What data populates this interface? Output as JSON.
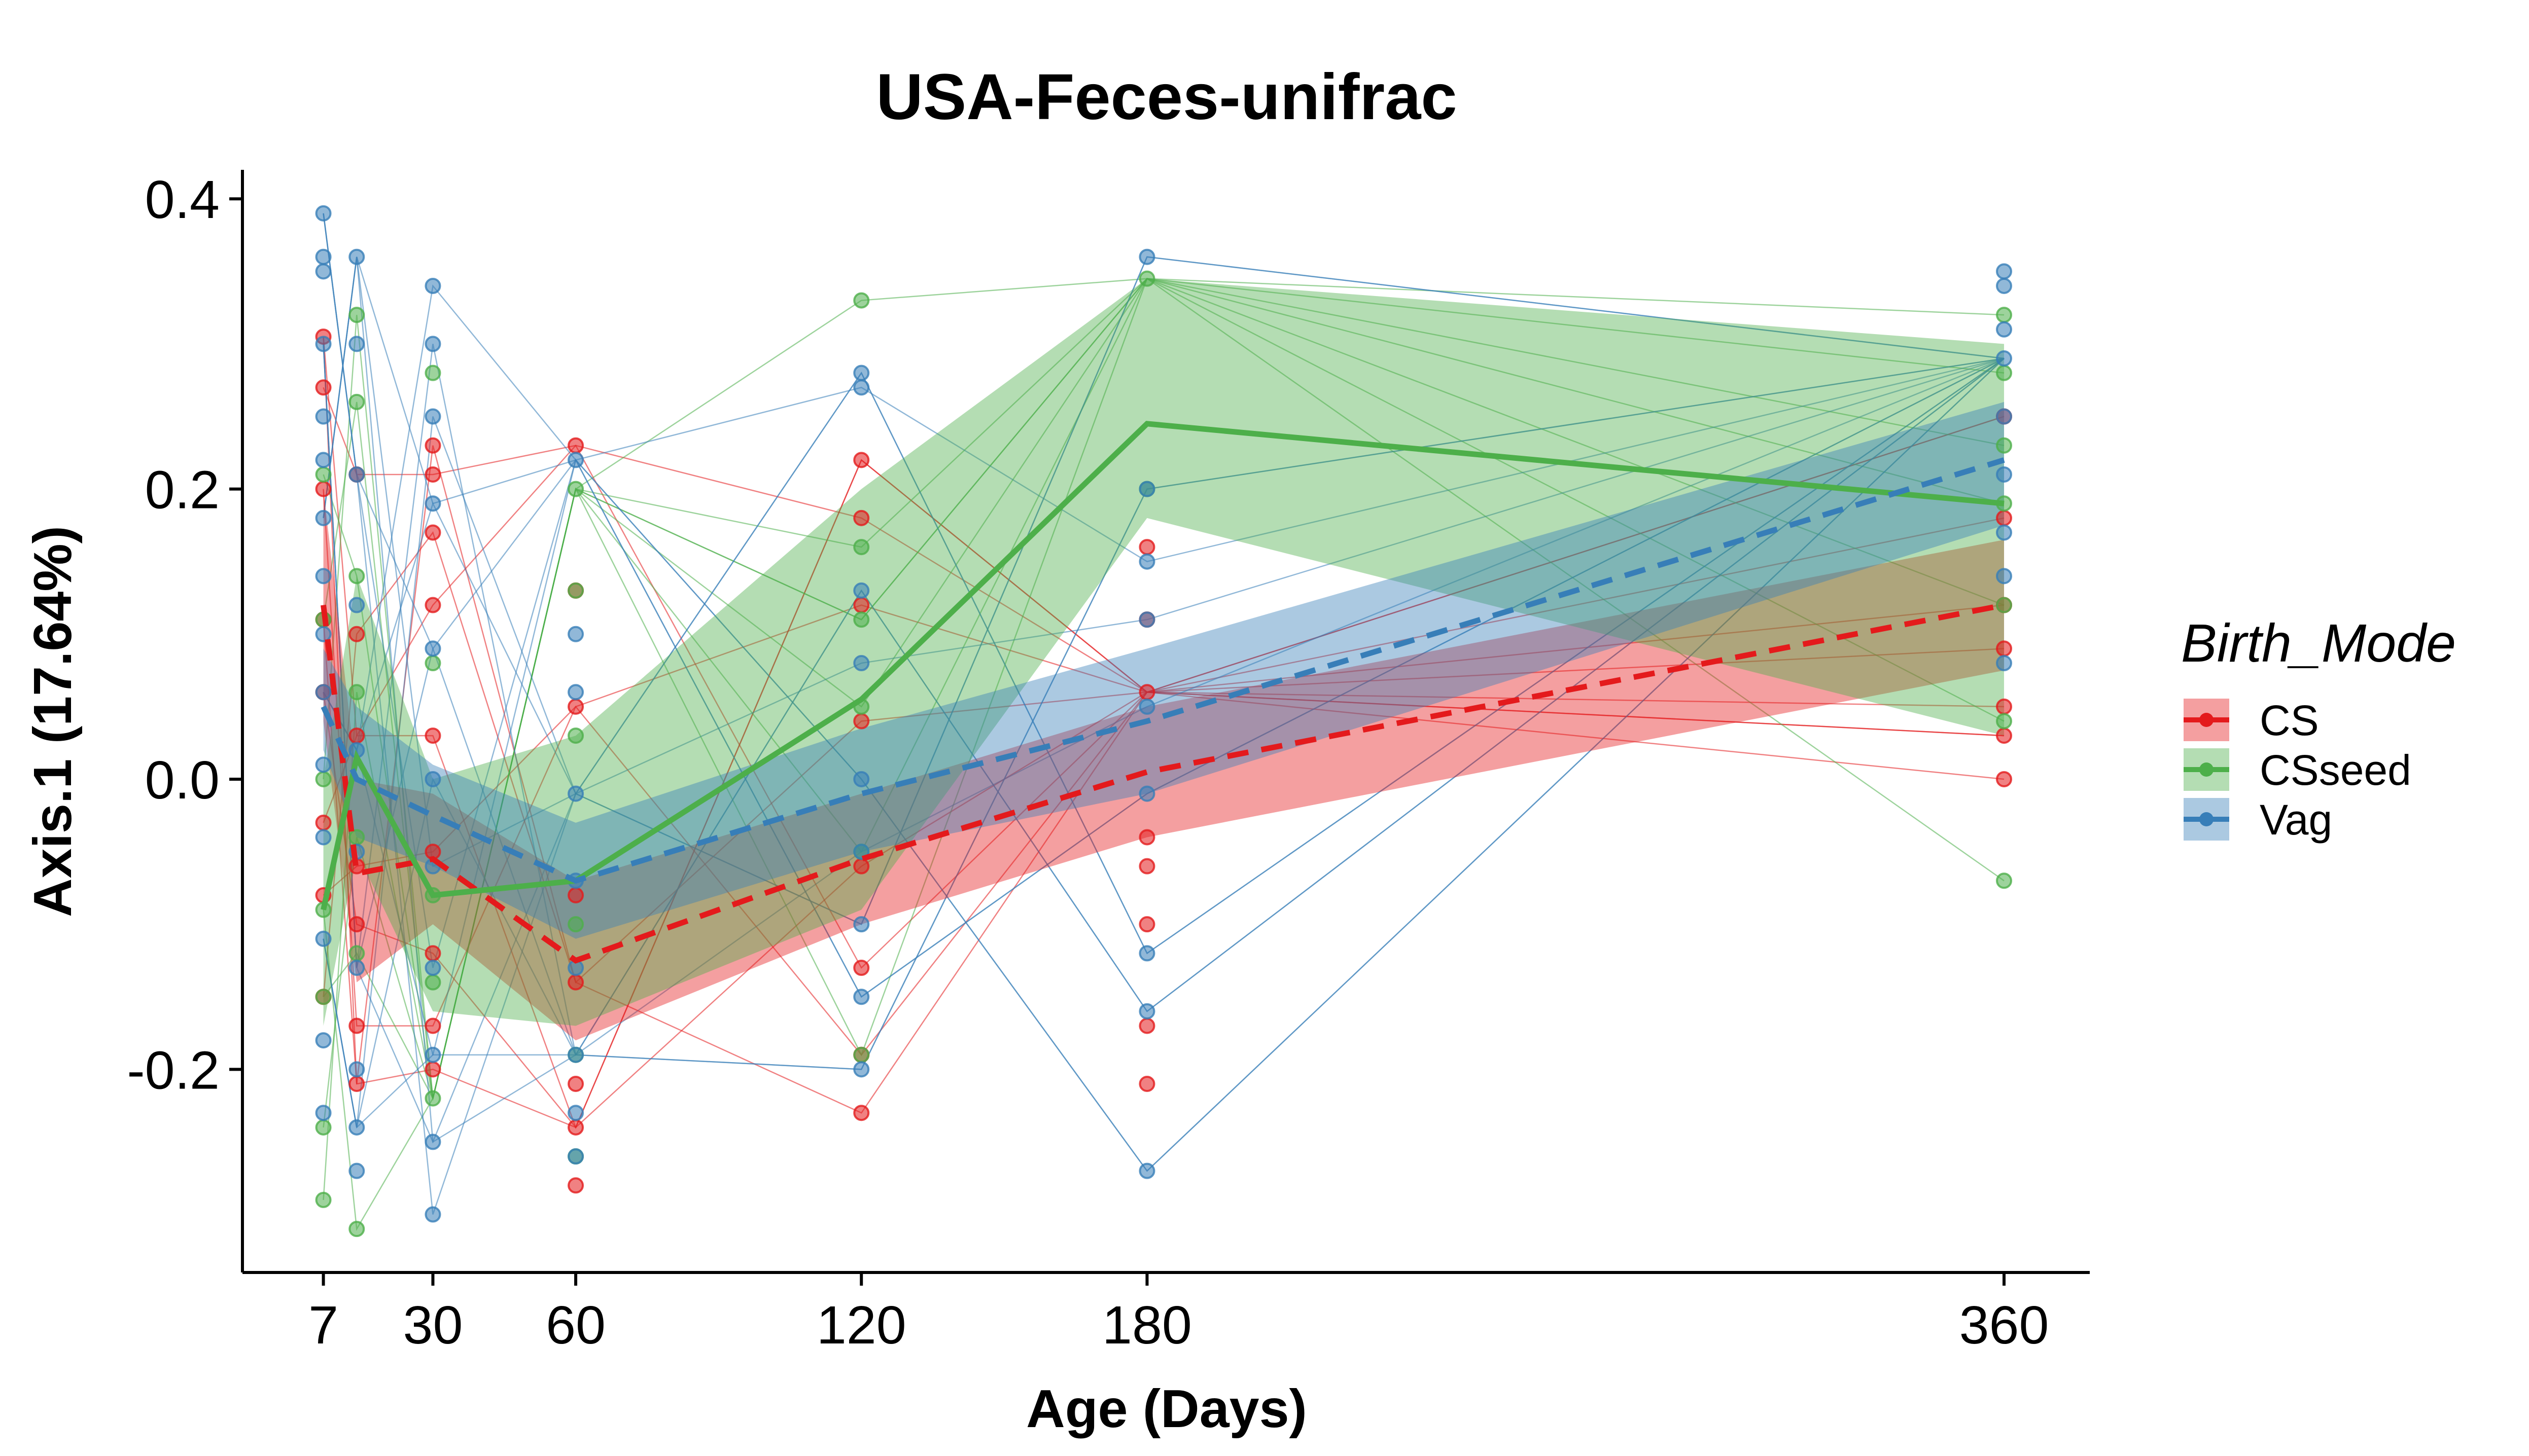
{
  "chart_data": {
    "type": "line",
    "title": "USA-Feces-unifrac",
    "xlabel": "Age (Days)",
    "ylabel": "Axis.1 (17.64%)",
    "x_ticks": [
      7,
      30,
      60,
      120,
      180,
      360
    ],
    "x_tick_labels": [
      "7",
      "30",
      "60",
      "120",
      "180",
      "360"
    ],
    "y_ticks": [
      -0.2,
      0.0,
      0.2,
      0.4
    ],
    "y_tick_labels": [
      "-0.2",
      "0.0",
      "0.2",
      "0.4"
    ],
    "xlim": [
      -10,
      378
    ],
    "ylim": [
      -0.34,
      0.42
    ],
    "grid": false,
    "legend": {
      "title": "Birth_Mode",
      "position": "right",
      "entries": [
        "CS",
        "CSseed",
        "Vag"
      ]
    },
    "colors": {
      "CS": "#E41A1C",
      "CSseed": "#4DAF4A",
      "Vag": "#377EB8"
    },
    "series": [
      {
        "name": "CS",
        "linestyle": "dashed",
        "x": [
          7,
          14,
          30,
          60,
          120,
          180,
          360
        ],
        "mean": [
          0.12,
          -0.065,
          -0.055,
          -0.125,
          -0.055,
          0.005,
          0.12
        ],
        "lower": [
          0.04,
          -0.14,
          -0.1,
          -0.18,
          -0.1,
          -0.04,
          0.075
        ],
        "upper": [
          0.2,
          -0.0,
          -0.01,
          -0.07,
          -0.01,
          0.05,
          0.165
        ]
      },
      {
        "name": "CSseed",
        "linestyle": "solid",
        "x": [
          7,
          14,
          30,
          60,
          120,
          180,
          360
        ],
        "mean": [
          -0.09,
          0.015,
          -0.08,
          -0.07,
          0.055,
          0.245,
          0.19
        ],
        "lower": [
          -0.17,
          -0.05,
          -0.16,
          -0.17,
          -0.09,
          0.18,
          0.03
        ],
        "upper": [
          0.0,
          0.14,
          -0.0,
          0.03,
          0.2,
          0.345,
          0.3
        ]
      },
      {
        "name": "Vag",
        "linestyle": "dashed",
        "x": [
          7,
          14,
          30,
          60,
          120,
          180,
          360
        ],
        "mean": [
          0.05,
          -0.0,
          -0.025,
          -0.07,
          -0.01,
          0.04,
          0.22
        ],
        "lower": [
          0.02,
          -0.04,
          -0.06,
          -0.11,
          -0.05,
          -0.01,
          0.175
        ],
        "upper": [
          0.09,
          0.05,
          0.01,
          -0.03,
          0.035,
          0.09,
          0.26
        ]
      }
    ],
    "points": {
      "CS": [
        [
          7,
          0.305
        ],
        [
          7,
          0.27
        ],
        [
          7,
          0.2
        ],
        [
          7,
          0.11
        ],
        [
          7,
          0.06
        ],
        [
          7,
          -0.03
        ],
        [
          7,
          -0.08
        ],
        [
          7,
          -0.15
        ],
        [
          14,
          0.21
        ],
        [
          14,
          0.1
        ],
        [
          14,
          0.03
        ],
        [
          14,
          -0.06
        ],
        [
          14,
          -0.1
        ],
        [
          14,
          -0.17
        ],
        [
          14,
          -0.21
        ],
        [
          30,
          0.23
        ],
        [
          30,
          0.21
        ],
        [
          30,
          0.17
        ],
        [
          30,
          0.12
        ],
        [
          30,
          0.03
        ],
        [
          30,
          -0.05
        ],
        [
          30,
          -0.12
        ],
        [
          30,
          -0.17
        ],
        [
          30,
          -0.2
        ],
        [
          60,
          0.23
        ],
        [
          60,
          0.13
        ],
        [
          60,
          0.05
        ],
        [
          60,
          -0.08
        ],
        [
          60,
          -0.14
        ],
        [
          60,
          -0.21
        ],
        [
          60,
          -0.24
        ],
        [
          60,
          -0.28
        ],
        [
          120,
          0.22
        ],
        [
          120,
          0.18
        ],
        [
          120,
          0.12
        ],
        [
          120,
          0.04
        ],
        [
          120,
          -0.06
        ],
        [
          120,
          -0.13
        ],
        [
          120,
          -0.19
        ],
        [
          120,
          -0.23
        ],
        [
          180,
          0.16
        ],
        [
          180,
          0.11
        ],
        [
          180,
          0.06
        ],
        [
          180,
          -0.04
        ],
        [
          180,
          -0.06
        ],
        [
          180,
          -0.1
        ],
        [
          180,
          -0.17
        ],
        [
          180,
          -0.21
        ],
        [
          360,
          0.25
        ],
        [
          360,
          0.18
        ],
        [
          360,
          0.12
        ],
        [
          360,
          0.09
        ],
        [
          360,
          0.05
        ],
        [
          360,
          0.03
        ],
        [
          360,
          0.0
        ]
      ],
      "CSseed": [
        [
          7,
          0.21
        ],
        [
          7,
          0.11
        ],
        [
          7,
          0.0
        ],
        [
          7,
          -0.09
        ],
        [
          7,
          -0.15
        ],
        [
          7,
          -0.24
        ],
        [
          7,
          -0.29
        ],
        [
          14,
          0.32
        ],
        [
          14,
          0.26
        ],
        [
          14,
          0.14
        ],
        [
          14,
          0.06
        ],
        [
          14,
          -0.04
        ],
        [
          14,
          -0.12
        ],
        [
          14,
          -0.31
        ],
        [
          30,
          0.28
        ],
        [
          30,
          0.08
        ],
        [
          30,
          -0.08
        ],
        [
          30,
          -0.14
        ],
        [
          30,
          -0.22
        ],
        [
          60,
          0.2
        ],
        [
          60,
          0.13
        ],
        [
          60,
          0.03
        ],
        [
          60,
          -0.1
        ],
        [
          60,
          -0.19
        ],
        [
          60,
          -0.26
        ],
        [
          120,
          0.33
        ],
        [
          120,
          0.16
        ],
        [
          120,
          0.11
        ],
        [
          120,
          0.05
        ],
        [
          120,
          -0.05
        ],
        [
          120,
          -0.19
        ],
        [
          180,
          0.345
        ],
        [
          180,
          0.2
        ],
        [
          360,
          0.32
        ],
        [
          360,
          0.28
        ],
        [
          360,
          0.23
        ],
        [
          360,
          0.19
        ],
        [
          360,
          0.12
        ],
        [
          360,
          0.04
        ],
        [
          360,
          -0.07
        ]
      ],
      "Vag": [
        [
          7,
          0.39
        ],
        [
          7,
          0.36
        ],
        [
          7,
          0.35
        ],
        [
          7,
          0.3
        ],
        [
          7,
          0.25
        ],
        [
          7,
          0.22
        ],
        [
          7,
          0.18
        ],
        [
          7,
          0.14
        ],
        [
          7,
          0.1
        ],
        [
          7,
          0.06
        ],
        [
          7,
          0.01
        ],
        [
          7,
          -0.04
        ],
        [
          7,
          -0.11
        ],
        [
          7,
          -0.18
        ],
        [
          7,
          -0.23
        ],
        [
          14,
          0.36
        ],
        [
          14,
          0.3
        ],
        [
          14,
          0.21
        ],
        [
          14,
          0.12
        ],
        [
          14,
          0.02
        ],
        [
          14,
          -0.05
        ],
        [
          14,
          -0.13
        ],
        [
          14,
          -0.2
        ],
        [
          14,
          -0.24
        ],
        [
          14,
          -0.27
        ],
        [
          30,
          0.34
        ],
        [
          30,
          0.3
        ],
        [
          30,
          0.25
        ],
        [
          30,
          0.19
        ],
        [
          30,
          0.09
        ],
        [
          30,
          0.0
        ],
        [
          30,
          -0.06
        ],
        [
          30,
          -0.13
        ],
        [
          30,
          -0.19
        ],
        [
          30,
          -0.25
        ],
        [
          30,
          -0.3
        ],
        [
          60,
          0.22
        ],
        [
          60,
          0.1
        ],
        [
          60,
          0.06
        ],
        [
          60,
          -0.01
        ],
        [
          60,
          -0.07
        ],
        [
          60,
          -0.13
        ],
        [
          60,
          -0.19
        ],
        [
          60,
          -0.23
        ],
        [
          60,
          -0.26
        ],
        [
          120,
          0.28
        ],
        [
          120,
          0.27
        ],
        [
          120,
          0.13
        ],
        [
          120,
          0.08
        ],
        [
          120,
          0.0
        ],
        [
          120,
          -0.05
        ],
        [
          120,
          -0.1
        ],
        [
          120,
          -0.15
        ],
        [
          120,
          -0.2
        ],
        [
          180,
          0.36
        ],
        [
          180,
          0.2
        ],
        [
          180,
          0.15
        ],
        [
          180,
          0.11
        ],
        [
          180,
          0.05
        ],
        [
          180,
          -0.01
        ],
        [
          180,
          -0.12
        ],
        [
          180,
          -0.16
        ],
        [
          180,
          -0.27
        ],
        [
          360,
          0.35
        ],
        [
          360,
          0.34
        ],
        [
          360,
          0.31
        ],
        [
          360,
          0.29
        ],
        [
          360,
          0.25
        ],
        [
          360,
          0.21
        ],
        [
          360,
          0.17
        ],
        [
          360,
          0.14
        ],
        [
          360,
          0.08
        ]
      ]
    }
  }
}
